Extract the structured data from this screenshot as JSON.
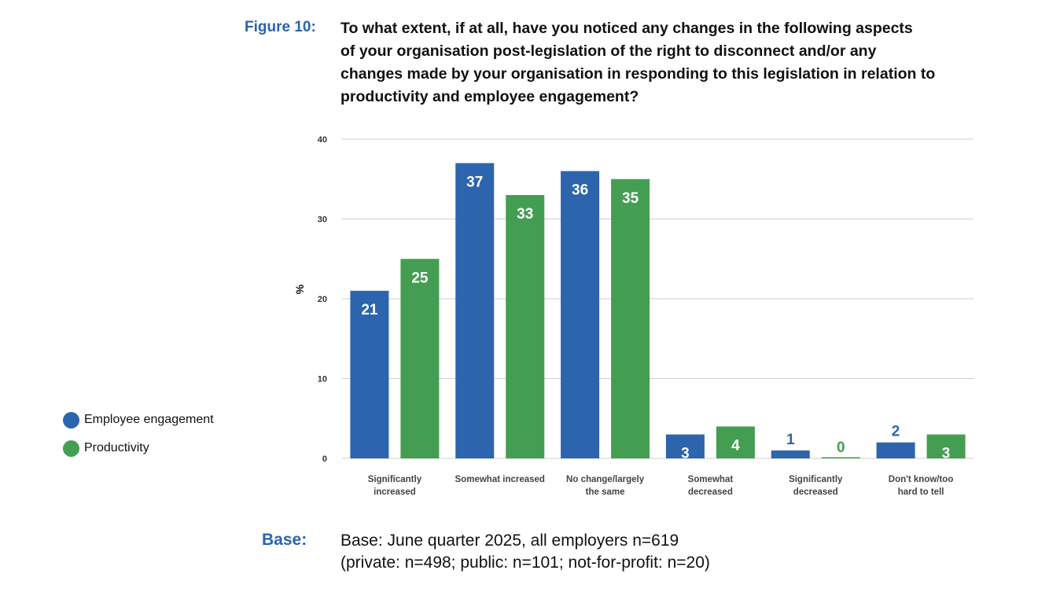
{
  "figure": {
    "label": "Figure 10:",
    "title_lines": [
      "To what extent, if at all, have you noticed any changes in the following aspects",
      "of your organisation post-legislation of the right to disconnect and/or any",
      "changes made by your organisation in responding to this legislation in relation to",
      "productivity and employee engagement?"
    ]
  },
  "base": {
    "label": "Base:",
    "lines": [
      "Base: June quarter 2025, all employers n=619",
      "(private: n=498; public: n=101; not-for-profit: n=20)"
    ]
  },
  "chart_data": {
    "type": "bar",
    "categories": [
      [
        "Significantly",
        "increased"
      ],
      [
        "Somewhat increased"
      ],
      [
        "No change/largely",
        "the same"
      ],
      [
        "Somewhat",
        "decreased"
      ],
      [
        "Significantly",
        "decreased"
      ],
      [
        "Don't know/too",
        "hard to tell"
      ]
    ],
    "series": [
      {
        "name": "Employee engagement",
        "color": "#2c64ae",
        "values": [
          21,
          37,
          36,
          3,
          1,
          2
        ]
      },
      {
        "name": "Productivity",
        "color": "#449e52",
        "values": [
          25,
          33,
          35,
          4,
          0,
          3
        ]
      }
    ],
    "ylabel": "%",
    "ylim": [
      0,
      40
    ],
    "yticks": [
      0,
      10,
      20,
      30,
      40
    ],
    "grid": true,
    "legend_position": "left"
  }
}
